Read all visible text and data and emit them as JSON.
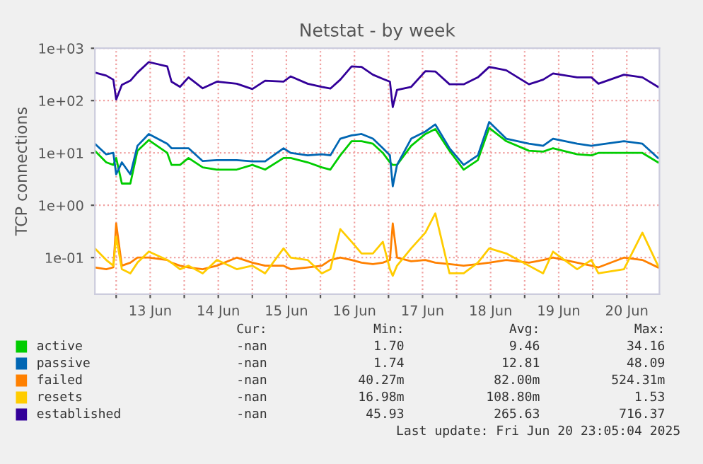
{
  "chart_data": {
    "type": "line",
    "title": "Netstat - by week",
    "ylabel": "TCP connections",
    "x": [
      "2025-06-12T16:30",
      "2025-06-12T20:30",
      "2025-06-12T23:00",
      "2025-06-13T00:00",
      "2025-06-13T02:00",
      "2025-06-13T05:00",
      "2025-06-13T07:30",
      "2025-06-13T11:30",
      "2025-06-13T18:00",
      "2025-06-13T19:30",
      "2025-06-13T22:30",
      "2025-06-14T01:30",
      "2025-06-14T06:30",
      "2025-06-14T11:30",
      "2025-06-14T18:30",
      "2025-06-15T00:00",
      "2025-06-15T04:30",
      "2025-06-15T11:00",
      "2025-06-15T13:30",
      "2025-06-15T19:30",
      "2025-06-16T00:30",
      "2025-06-16T03:30",
      "2025-06-16T07:00",
      "2025-06-16T11:00",
      "2025-06-16T14:30",
      "2025-06-16T18:30",
      "2025-06-16T22:00",
      "2025-06-17T00:30",
      "2025-06-17T01:30",
      "2025-06-17T03:00",
      "2025-06-17T08:00",
      "2025-06-17T13:00",
      "2025-06-17T16:30",
      "2025-06-17T21:30",
      "2025-06-18T02:30",
      "2025-06-18T07:30",
      "2025-06-18T11:30",
      "2025-06-18T17:30",
      "2025-06-19T01:30",
      "2025-06-19T06:30",
      "2025-06-19T10:00",
      "2025-06-19T18:30",
      "2025-06-19T23:30",
      "2025-06-20T02:00",
      "2025-06-20T11:00",
      "2025-06-20T17:30",
      "2025-06-20T23:00"
    ],
    "series": [
      {
        "name": "active",
        "color": "#00cc00",
        "values": [
          11,
          6.6,
          5.9,
          8,
          2.6,
          2.6,
          11,
          17.6,
          10,
          5.9,
          5.9,
          8,
          5.3,
          4.8,
          4.8,
          5.9,
          4.8,
          8,
          8,
          6.6,
          5.3,
          4.8,
          9,
          16.8,
          16.8,
          15,
          10,
          6.6,
          5.9,
          5.9,
          13.7,
          23,
          28.5,
          11,
          4.8,
          7.3,
          30,
          16.8,
          11,
          10.6,
          12.3,
          9.4,
          9,
          10,
          10,
          10,
          6.6
        ]
      },
      {
        "name": "passive",
        "color": "#0066b3",
        "values": [
          15,
          9.4,
          10,
          3.9,
          6.6,
          3.9,
          13.7,
          23,
          15,
          12.3,
          12.3,
          12.3,
          7,
          7.3,
          7.3,
          6.9,
          6.9,
          12.3,
          10,
          9,
          9.4,
          9,
          18.7,
          21.7,
          23,
          18.7,
          12.3,
          9,
          2.3,
          5.9,
          18.7,
          25.6,
          35,
          12.3,
          5.9,
          9,
          39,
          18.7,
          15,
          13.7,
          18.7,
          15,
          13.7,
          14.3,
          16.8,
          15,
          8
        ]
      },
      {
        "name": "failed",
        "color": "#ff8000",
        "values": [
          0.065,
          0.06,
          0.065,
          0.45,
          0.07,
          0.08,
          0.1,
          0.1,
          0.09,
          0.08,
          0.07,
          0.065,
          0.06,
          0.07,
          0.1,
          0.08,
          0.07,
          0.07,
          0.06,
          0.065,
          0.07,
          0.09,
          0.1,
          0.09,
          0.08,
          0.075,
          0.08,
          0.09,
          0.45,
          0.1,
          0.085,
          0.09,
          0.08,
          0.075,
          0.07,
          0.075,
          0.08,
          0.09,
          0.08,
          0.09,
          0.1,
          0.08,
          0.07,
          0.065,
          0.1,
          0.09,
          0.065
        ]
      },
      {
        "name": "resets",
        "color": "#ffcc00",
        "values": [
          0.15,
          0.09,
          0.07,
          0.25,
          0.06,
          0.05,
          0.08,
          0.13,
          0.09,
          0.08,
          0.06,
          0.07,
          0.05,
          0.09,
          0.06,
          0.07,
          0.05,
          0.15,
          0.1,
          0.09,
          0.05,
          0.06,
          0.35,
          0.2,
          0.12,
          0.12,
          0.2,
          0.06,
          0.045,
          0.07,
          0.15,
          0.3,
          0.7,
          0.05,
          0.05,
          0.08,
          0.15,
          0.12,
          0.07,
          0.05,
          0.13,
          0.06,
          0.09,
          0.05,
          0.06,
          0.3,
          0.07
        ]
      },
      {
        "name": "established",
        "color": "#330099",
        "values": [
          343,
          300,
          251,
          105,
          200,
          240,
          343,
          545,
          450,
          230,
          183,
          278,
          172,
          230,
          210,
          166,
          240,
          230,
          290,
          210,
          183,
          170,
          251,
          450,
          440,
          312,
          260,
          230,
          75,
          160,
          183,
          365,
          360,
          205,
          205,
          278,
          440,
          380,
          205,
          251,
          330,
          278,
          278,
          210,
          312,
          278,
          183
        ]
      }
    ],
    "log": "y",
    "ylim": [
      0.02,
      1000
    ],
    "yticks": [
      {
        "value": 0.1,
        "label": "1e-01"
      },
      {
        "value": 1,
        "label": "1e+00"
      },
      {
        "value": 10,
        "label": "1e+01"
      },
      {
        "value": 100,
        "label": "1e+02"
      },
      {
        "value": 1000,
        "label": "1e+03"
      }
    ],
    "xlim": [
      "2025-06-12T16:30",
      "2025-06-20T23:30"
    ],
    "xticks": [
      {
        "value": "2025-06-13T00:00",
        "label": null
      },
      {
        "value": "2025-06-13T12:00",
        "label": "13 Jun"
      },
      {
        "value": "2025-06-14T00:00",
        "label": null
      },
      {
        "value": "2025-06-14T12:00",
        "label": "14 Jun"
      },
      {
        "value": "2025-06-15T00:00",
        "label": null
      },
      {
        "value": "2025-06-15T12:00",
        "label": "15 Jun"
      },
      {
        "value": "2025-06-16T00:00",
        "label": null
      },
      {
        "value": "2025-06-16T12:00",
        "label": "16 Jun"
      },
      {
        "value": "2025-06-17T00:00",
        "label": null
      },
      {
        "value": "2025-06-17T12:00",
        "label": "17 Jun"
      },
      {
        "value": "2025-06-18T00:00",
        "label": null
      },
      {
        "value": "2025-06-18T12:00",
        "label": "18 Jun"
      },
      {
        "value": "2025-06-19T00:00",
        "label": null
      },
      {
        "value": "2025-06-19T12:00",
        "label": "19 Jun"
      },
      {
        "value": "2025-06-20T00:00",
        "label": null
      },
      {
        "value": "2025-06-20T12:00",
        "label": "20 Jun"
      }
    ],
    "grid": true,
    "legend": "bottom",
    "marker": "none",
    "line_style": "solid",
    "annotations": [
      "Cur:",
      "Min:",
      "Avg:",
      "Max:",
      "-nan",
      "1.70",
      "9.46",
      "34.16",
      "-nan",
      "1.74",
      "12.81",
      "48.09",
      "-nan",
      "40.27m",
      "82.00m",
      "524.31m",
      "-nan",
      "16.98m",
      "108.80m",
      "1.53",
      "-nan",
      "45.93",
      "265.63",
      "716.37",
      "Last update: Fri Jun 20 23:05:04 2025"
    ]
  }
}
